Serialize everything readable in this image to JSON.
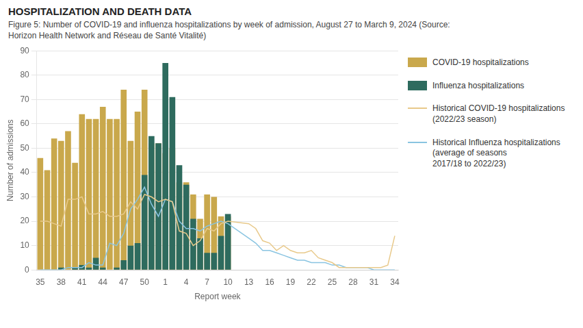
{
  "chart_data": {
    "type": "bar",
    "title": "HOSPITALIZATION AND DEATH DATA",
    "subtitle": "Figure 5: Number of COVID-19 and influenza hospitalizations by week of admission, August 27 to March 9, 2024 (Source:\nHorizon Health Network and Réseau de Santé Vitalité)",
    "xlabel": "Report week",
    "ylabel": "Number of admissions",
    "categories": [
      "35",
      null,
      null,
      "38",
      null,
      null,
      "41",
      null,
      null,
      "44",
      null,
      null,
      "47",
      null,
      null,
      "50",
      null,
      null,
      "1",
      null,
      null,
      "4",
      null,
      null,
      "7",
      null,
      null,
      "10",
      null,
      null,
      "13",
      null,
      null,
      "16",
      null,
      null,
      "19",
      null,
      null,
      "22",
      null,
      null,
      "25",
      null,
      null,
      "28",
      null,
      null,
      "31",
      null,
      null,
      "34"
    ],
    "series": [
      {
        "name": "COVID-19 hospitalizations",
        "type": "bar",
        "color": "#C9A84C",
        "values": [
          46,
          41,
          54,
          53,
          57,
          44,
          64,
          62,
          62,
          67,
          62,
          62,
          74,
          53,
          65,
          74,
          52,
          52,
          48,
          50,
          36,
          36,
          31,
          21,
          31,
          30,
          22,
          22,
          null,
          null,
          null,
          null,
          null,
          null,
          null,
          null,
          null,
          null,
          null,
          null,
          null,
          null,
          null,
          null,
          null,
          null,
          null,
          null,
          null,
          null,
          null,
          null
        ]
      },
      {
        "name": "Influenza hospitalizations",
        "type": "bar",
        "color": "#2E6B5E",
        "values": [
          0,
          0,
          0,
          1,
          0,
          1,
          2,
          1,
          5,
          1,
          0,
          1,
          4,
          10,
          11,
          39,
          55,
          52,
          85,
          71,
          43,
          35,
          21,
          13,
          7,
          7,
          14,
          23,
          null,
          null,
          null,
          null,
          null,
          null,
          null,
          null,
          null,
          null,
          null,
          null,
          null,
          null,
          null,
          null,
          null,
          null,
          null,
          null,
          null,
          null,
          null,
          null
        ]
      },
      {
        "name": "Historical COVID-19 hospitalizations (2022/23 season)",
        "type": "line",
        "color": "#E8C98A",
        "values": [
          20,
          20,
          19,
          18,
          29,
          29,
          30,
          23,
          23,
          24,
          22,
          22,
          23,
          28,
          25,
          31,
          30,
          28,
          29,
          28,
          16,
          15,
          10,
          12,
          17,
          16,
          19,
          20,
          null,
          null,
          19,
          17,
          12,
          11,
          8,
          10,
          8,
          7,
          7,
          8,
          5,
          4,
          3,
          1,
          1,
          1,
          1,
          1,
          1,
          1,
          2,
          14
        ]
      },
      {
        "name": "Historical Influenza hospitalizations (average of seasons\n2017/18 to 2022/23)",
        "type": "line",
        "color": "#89C4E1",
        "values": [
          0,
          0,
          0,
          0,
          1,
          1,
          1,
          3,
          2,
          2,
          11,
          10,
          15,
          25,
          29,
          34,
          27,
          22,
          29,
          28,
          20,
          17,
          17,
          16,
          18,
          19,
          20,
          19,
          null,
          null,
          13,
          11,
          8,
          8,
          7,
          6,
          5,
          4,
          4,
          3,
          3,
          3,
          2,
          2,
          1,
          1,
          1,
          1,
          0,
          0,
          0,
          0
        ]
      }
    ],
    "ylim": [
      0,
      90
    ],
    "yticks": [
      0,
      10,
      20,
      30,
      40,
      50,
      60,
      70,
      80,
      90
    ],
    "grid": true,
    "legend": "right"
  }
}
